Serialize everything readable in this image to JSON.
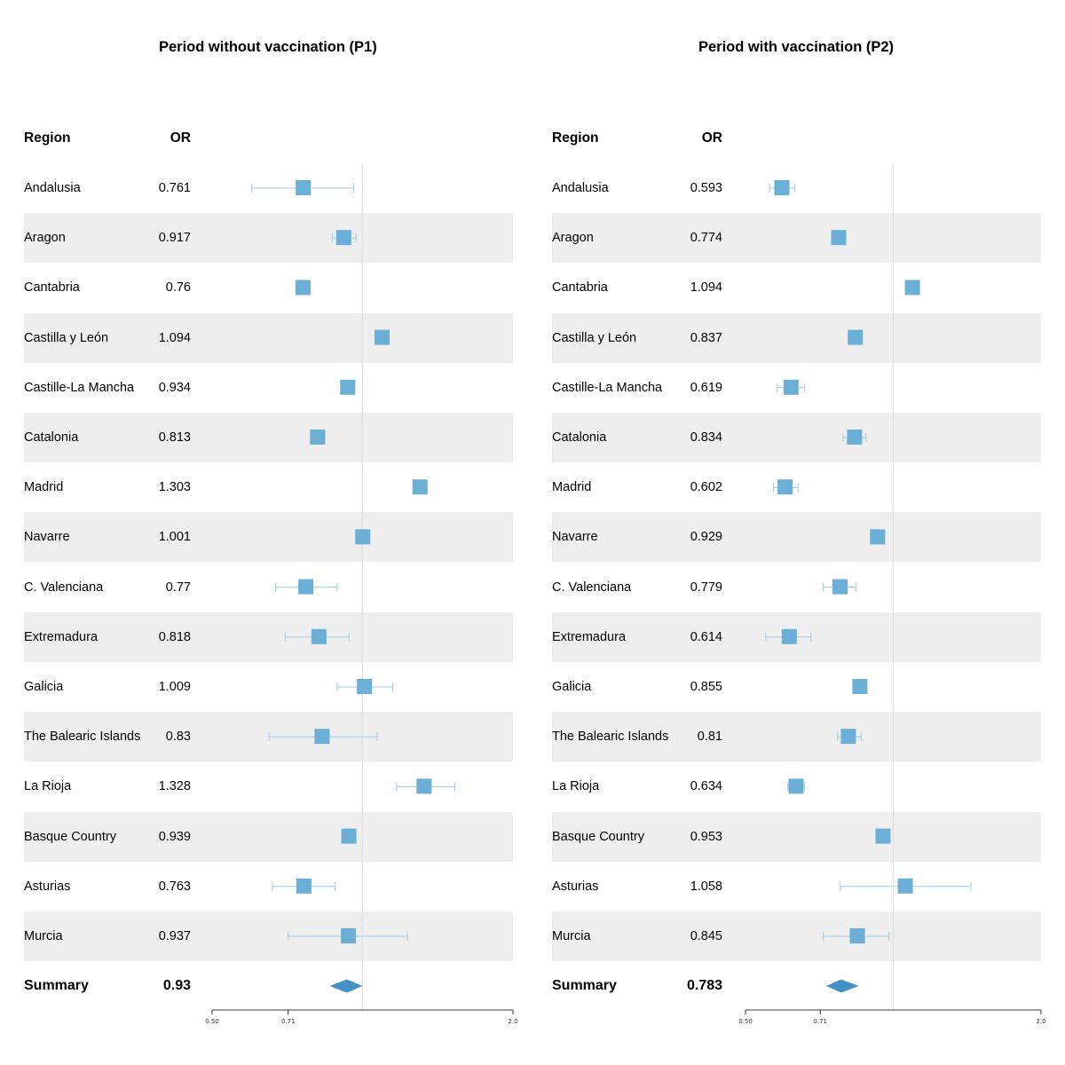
{
  "chart_data": [
    {
      "type": "forest",
      "title": "Period without vaccination (P1)",
      "columns": {
        "region": "Region",
        "or": "OR"
      },
      "x_scale": "log",
      "xlim": [
        0.5,
        2.0
      ],
      "x_ticks": [
        "0.50",
        "0.71",
        "2.0"
      ],
      "reference_line": 1.0,
      "rows": [
        {
          "region": "Andalusia",
          "or_label": "0.761",
          "or": 0.761,
          "lo": 0.6,
          "hi": 0.96
        },
        {
          "region": "Aragon",
          "or_label": "0.917",
          "or": 0.917,
          "lo": 0.87,
          "hi": 0.97
        },
        {
          "region": "Cantabria",
          "or_label": "0.76",
          "or": 0.76,
          "lo": null,
          "hi": null
        },
        {
          "region": "Castilla y León",
          "or_label": "1.094",
          "or": 1.094,
          "lo": null,
          "hi": null
        },
        {
          "region": "Castille-La Mancha",
          "or_label": "0.934",
          "or": 0.934,
          "lo": 0.91,
          "hi": 0.96
        },
        {
          "region": "Catalonia",
          "or_label": "0.813",
          "or": 0.813,
          "lo": 0.79,
          "hi": 0.84
        },
        {
          "region": "Madrid",
          "or_label": "1.303",
          "or": 1.303,
          "lo": null,
          "hi": null
        },
        {
          "region": "Navarre",
          "or_label": "1.001",
          "or": 1.001,
          "lo": null,
          "hi": null
        },
        {
          "region": "C. Valenciana",
          "or_label": "0.77",
          "or": 0.77,
          "lo": 0.67,
          "hi": 0.89
        },
        {
          "region": "Extremadura",
          "or_label": "0.818",
          "or": 0.818,
          "lo": 0.7,
          "hi": 0.94
        },
        {
          "region": "Galicia",
          "or_label": "1.009",
          "or": 1.009,
          "lo": 0.89,
          "hi": 1.15
        },
        {
          "region": "The Balearic Islands",
          "or_label": "0.83",
          "or": 0.83,
          "lo": 0.65,
          "hi": 1.07
        },
        {
          "region": "La Rioja",
          "or_label": "1.328",
          "or": 1.328,
          "lo": 1.17,
          "hi": 1.53
        },
        {
          "region": "Basque Country",
          "or_label": "0.939",
          "or": 0.939,
          "lo": null,
          "hi": null
        },
        {
          "region": "Asturias",
          "or_label": "0.763",
          "or": 0.763,
          "lo": 0.66,
          "hi": 0.88
        },
        {
          "region": "Murcia",
          "or_label": "0.937",
          "or": 0.937,
          "lo": 0.71,
          "hi": 1.23
        }
      ],
      "summary": {
        "label": "Summary",
        "or_label": "0.93",
        "or": 0.93,
        "lo": 0.86,
        "hi": 1.0
      }
    },
    {
      "type": "forest",
      "title": "Period with vaccination (P2)",
      "columns": {
        "region": "Region",
        "or": "OR"
      },
      "x_scale": "log",
      "xlim": [
        0.5,
        2.0
      ],
      "x_ticks": [
        "0.50",
        "0.71",
        "2.0"
      ],
      "reference_line": 1.0,
      "rows": [
        {
          "region": "Andalusia",
          "or_label": "0.593",
          "or": 0.593,
          "lo": 0.56,
          "hi": 0.63
        },
        {
          "region": "Aragon",
          "or_label": "0.774",
          "or": 0.774,
          "lo": 0.75,
          "hi": 0.8
        },
        {
          "region": "Cantabria",
          "or_label": "1.094",
          "or": 1.094,
          "lo": null,
          "hi": null
        },
        {
          "region": "Castilla y León",
          "or_label": "0.837",
          "or": 0.837,
          "lo": null,
          "hi": null
        },
        {
          "region": "Castille-La Mancha",
          "or_label": "0.619",
          "or": 0.619,
          "lo": 0.58,
          "hi": 0.66
        },
        {
          "region": "Catalonia",
          "or_label": "0.834",
          "or": 0.834,
          "lo": 0.79,
          "hi": 0.88
        },
        {
          "region": "Madrid",
          "or_label": "0.602",
          "or": 0.602,
          "lo": 0.57,
          "hi": 0.64
        },
        {
          "region": "Navarre",
          "or_label": "0.929",
          "or": 0.929,
          "lo": 0.91,
          "hi": 0.95
        },
        {
          "region": "C. Valenciana",
          "or_label": "0.779",
          "or": 0.779,
          "lo": 0.72,
          "hi": 0.84
        },
        {
          "region": "Extremadura",
          "or_label": "0.614",
          "or": 0.614,
          "lo": 0.55,
          "hi": 0.68
        },
        {
          "region": "Galicia",
          "or_label": "0.855",
          "or": 0.855,
          "lo": null,
          "hi": null
        },
        {
          "region": "The Balearic Islands",
          "or_label": "0.81",
          "or": 0.81,
          "lo": 0.77,
          "hi": 0.86
        },
        {
          "region": "La Rioja",
          "or_label": "0.634",
          "or": 0.634,
          "lo": 0.61,
          "hi": 0.66
        },
        {
          "region": "Basque Country",
          "or_label": "0.953",
          "or": 0.953,
          "lo": null,
          "hi": null
        },
        {
          "region": "Asturias",
          "or_label": "1.058",
          "or": 1.058,
          "lo": 0.78,
          "hi": 1.44
        },
        {
          "region": "Murcia",
          "or_label": "0.845",
          "or": 0.845,
          "lo": 0.72,
          "hi": 0.98
        }
      ],
      "summary": {
        "label": "Summary",
        "or_label": "0.783",
        "or": 0.783,
        "lo": 0.73,
        "hi": 0.85
      }
    }
  ],
  "colors": {
    "marker": "#6baed6",
    "ci_line": "#9ecae1",
    "summary": "#4292c6",
    "band": "#eeeeee",
    "reference": "#dddddd"
  }
}
